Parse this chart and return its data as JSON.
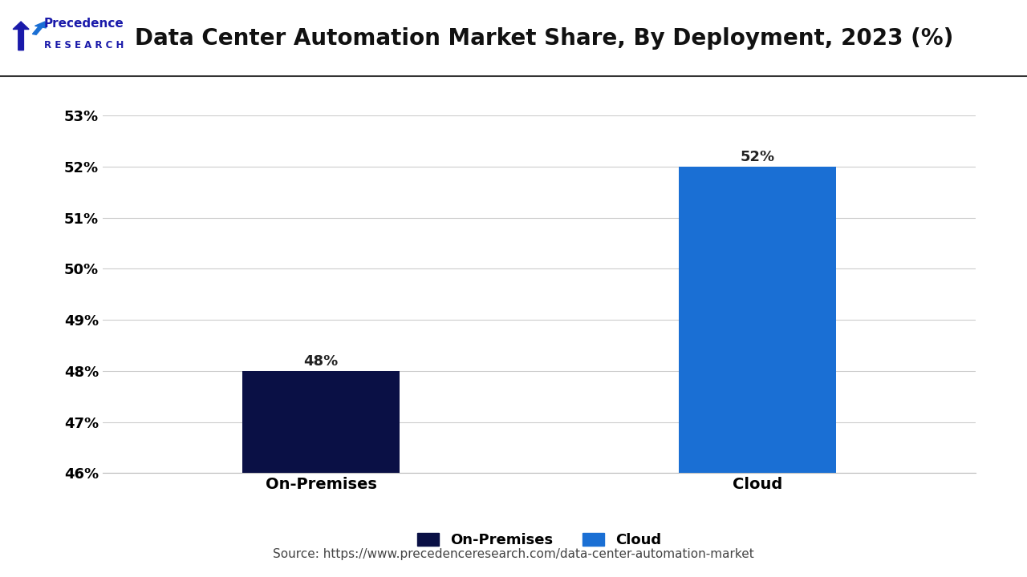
{
  "title": "Data Center Automation Market Share, By Deployment, 2023 (%)",
  "categories": [
    "On-Premises",
    "Cloud"
  ],
  "values": [
    48,
    52
  ],
  "bar_colors": [
    "#0a1045",
    "#1a6fd4"
  ],
  "ylim": [
    46,
    53
  ],
  "yticks": [
    46,
    47,
    48,
    49,
    50,
    51,
    52,
    53
  ],
  "ytick_labels": [
    "46%",
    "47%",
    "48%",
    "49%",
    "50%",
    "51%",
    "52%",
    "53%"
  ],
  "bar_labels": [
    "48%",
    "52%"
  ],
  "legend_labels": [
    "On-Premises",
    "Cloud"
  ],
  "legend_colors": [
    "#0a1045",
    "#1a6fd4"
  ],
  "source_text": "Source: https://www.precedenceresearch.com/data-center-automation-market",
  "background_color": "#ffffff",
  "title_fontsize": 20,
  "tick_fontsize": 13,
  "label_fontsize": 14,
  "bar_label_fontsize": 13,
  "legend_fontsize": 13,
  "source_fontsize": 11
}
